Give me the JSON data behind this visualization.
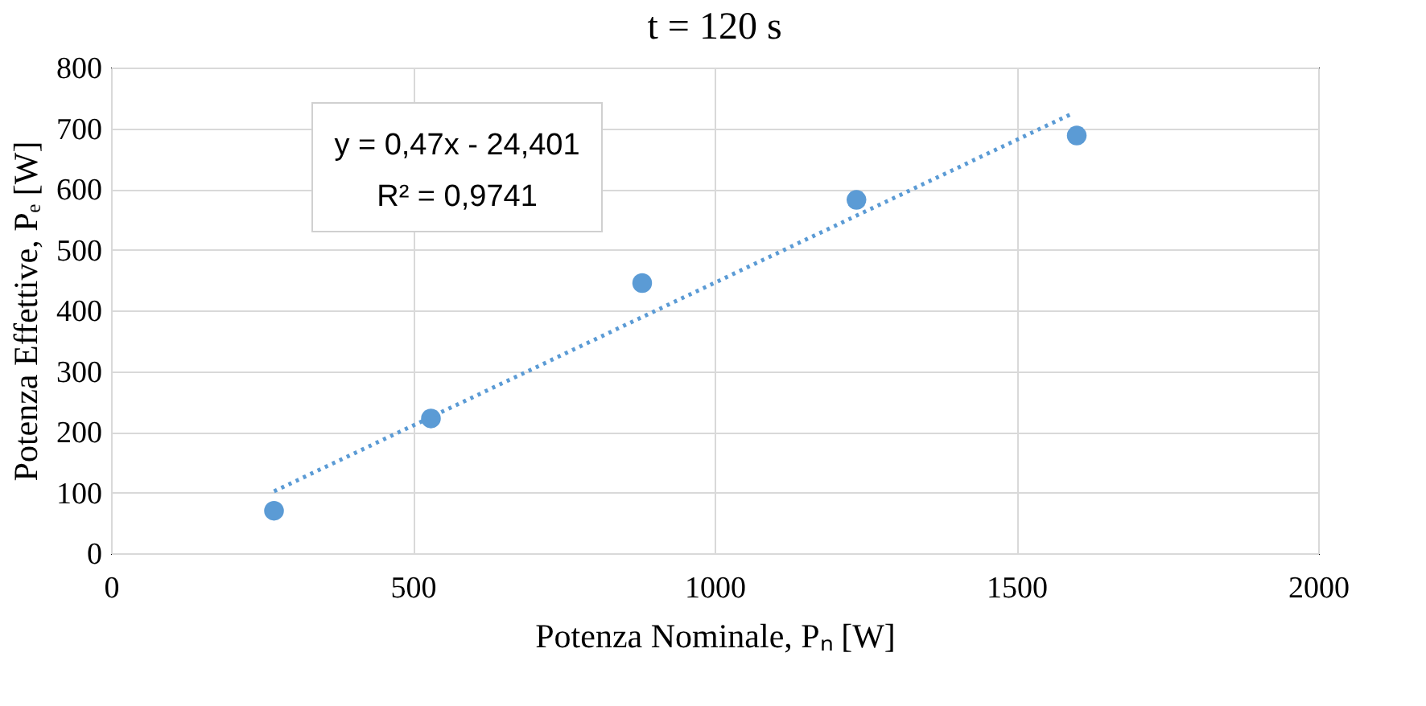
{
  "chart_data": {
    "type": "scatter",
    "title": "t = 120 s",
    "xlabel": "Potenza Nominale, Pₙ [W]",
    "ylabel": "Potenza Effettive, Pₑ [W]",
    "xlim": [
      0,
      2000
    ],
    "xticks": [
      0,
      500,
      1000,
      1500,
      2000
    ],
    "ylim": [
      0,
      800
    ],
    "yticks": [
      0,
      100,
      200,
      300,
      400,
      500,
      600,
      700,
      800
    ],
    "grid": true,
    "series": [
      {
        "marker": "circle",
        "color": "#5b9bd5",
        "x": [
          270,
          530,
          880,
          1235,
          1600
        ],
        "values": [
          70,
          222,
          445,
          582,
          688
        ]
      },
      {
        "type": "line",
        "color": "#5b9bd5",
        "line_style": "dotted",
        "x": [
          270,
          1590
        ],
        "values": [
          102,
          723
        ]
      }
    ],
    "annotations": [
      "y = 0,47x - 24,401",
      "R² = 0,9741"
    ]
  }
}
